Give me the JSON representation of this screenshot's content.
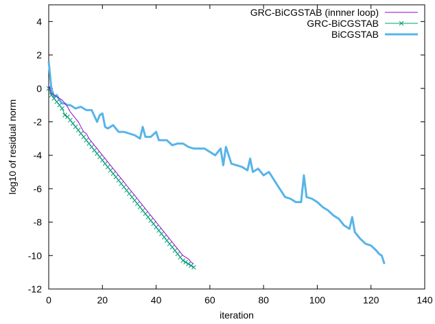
{
  "chart_data": {
    "type": "line",
    "title": "",
    "xlabel": "iteration",
    "ylabel": "log10 of residual norm",
    "xlim": [
      0,
      140
    ],
    "ylim": [
      -12,
      5
    ],
    "xticks": [
      0,
      20,
      40,
      60,
      80,
      100,
      120,
      140
    ],
    "yticks": [
      -12,
      -10,
      -8,
      -6,
      -4,
      -2,
      0,
      2,
      4
    ],
    "grid": false,
    "legend": "top-right",
    "series": [
      {
        "name": "GRC-BiCGSTAB (innner loop)",
        "color": "#9400d3",
        "style": "thin-line",
        "x": [
          0,
          1,
          2,
          3,
          4,
          5,
          6,
          7,
          8,
          9,
          10,
          11,
          12,
          13,
          14,
          15,
          16,
          17,
          18,
          19,
          20,
          21,
          22,
          23,
          24,
          25,
          26,
          27,
          28,
          29,
          30,
          31,
          32,
          33,
          34,
          35,
          36,
          37,
          38,
          39,
          40,
          41,
          42,
          43,
          44,
          45,
          46,
          47,
          48,
          49,
          50,
          51,
          52,
          53,
          54
        ],
        "y": [
          0.2,
          -0.3,
          -0.4,
          -0.5,
          -0.6,
          -0.7,
          -0.9,
          -1.1,
          -1.4,
          -1.6,
          -1.8,
          -2.0,
          -2.3,
          -2.6,
          -2.7,
          -3.0,
          -3.2,
          -3.4,
          -3.6,
          -3.8,
          -4.0,
          -4.2,
          -4.4,
          -4.6,
          -4.8,
          -5.0,
          -5.2,
          -5.4,
          -5.6,
          -5.8,
          -6.0,
          -6.2,
          -6.4,
          -6.6,
          -6.8,
          -7.0,
          -7.2,
          -7.4,
          -7.6,
          -7.8,
          -8.0,
          -8.2,
          -8.4,
          -8.6,
          -8.8,
          -9.0,
          -9.2,
          -9.4,
          -9.6,
          -9.8,
          -10.0,
          -10.1,
          -10.2,
          -10.4,
          -10.5
        ]
      },
      {
        "name": "GRC-BiCGSTAB",
        "color": "#009e73",
        "style": "line-cross",
        "x": [
          0,
          1,
          2,
          3,
          4,
          5,
          6,
          7,
          8,
          9,
          10,
          11,
          12,
          13,
          14,
          15,
          16,
          17,
          18,
          19,
          20,
          21,
          22,
          23,
          24,
          25,
          26,
          27,
          28,
          29,
          30,
          31,
          32,
          33,
          34,
          35,
          36,
          37,
          38,
          39,
          40,
          41,
          42,
          43,
          44,
          45,
          46,
          47,
          48,
          49,
          50,
          51,
          52,
          53,
          54
        ],
        "y": [
          0.0,
          -0.4,
          -0.6,
          -0.8,
          -1.0,
          -1.2,
          -1.6,
          -1.7,
          -1.9,
          -2.1,
          -2.3,
          -2.5,
          -2.7,
          -2.9,
          -3.1,
          -3.3,
          -3.5,
          -3.7,
          -3.9,
          -4.1,
          -4.3,
          -4.5,
          -4.7,
          -4.9,
          -5.1,
          -5.3,
          -5.5,
          -5.7,
          -5.9,
          -6.1,
          -6.3,
          -6.5,
          -6.7,
          -6.9,
          -7.1,
          -7.3,
          -7.5,
          -7.7,
          -7.9,
          -8.1,
          -8.3,
          -8.5,
          -8.7,
          -8.9,
          -9.1,
          -9.3,
          -9.5,
          -9.7,
          -9.9,
          -10.1,
          -10.3,
          -10.4,
          -10.5,
          -10.6,
          -10.7
        ]
      },
      {
        "name": "BiCGSTAB",
        "color": "#56b4e9",
        "style": "thick-line",
        "x": [
          0,
          1,
          2,
          3,
          4,
          5,
          6,
          7,
          8,
          10,
          12,
          14,
          16,
          18,
          19,
          20,
          21,
          22,
          24,
          26,
          28,
          30,
          32,
          34,
          35,
          36,
          38,
          40,
          41,
          42,
          44,
          46,
          48,
          50,
          52,
          54,
          56,
          58,
          60,
          62,
          64,
          65,
          66,
          68,
          70,
          72,
          74,
          75,
          76,
          78,
          80,
          82,
          84,
          86,
          88,
          90,
          92,
          94,
          95,
          96,
          98,
          100,
          102,
          104,
          106,
          108,
          110,
          112,
          113,
          114,
          116,
          118,
          120,
          122,
          123,
          124,
          125
        ],
        "y": [
          1.6,
          0.0,
          -0.5,
          -0.4,
          -0.7,
          -0.9,
          -0.9,
          -1.0,
          -1.0,
          -1.2,
          -1.1,
          -1.3,
          -1.3,
          -2.0,
          -1.6,
          -1.5,
          -2.3,
          -2.4,
          -2.2,
          -2.6,
          -2.6,
          -2.7,
          -2.8,
          -3.0,
          -2.3,
          -2.9,
          -2.9,
          -2.6,
          -3.1,
          -3.1,
          -3.1,
          -3.4,
          -3.3,
          -3.3,
          -3.5,
          -3.6,
          -3.6,
          -3.6,
          -3.8,
          -4.0,
          -3.6,
          -4.6,
          -3.5,
          -4.5,
          -4.6,
          -4.7,
          -4.9,
          -4.2,
          -5.0,
          -4.8,
          -5.2,
          -5.0,
          -5.5,
          -6.0,
          -6.5,
          -6.6,
          -6.8,
          -6.8,
          -5.2,
          -6.5,
          -6.6,
          -6.8,
          -7.1,
          -7.3,
          -7.6,
          -7.8,
          -8.2,
          -8.4,
          -7.7,
          -8.6,
          -9.0,
          -9.3,
          -9.4,
          -9.7,
          -9.9,
          -10.0,
          -10.5
        ]
      }
    ]
  }
}
